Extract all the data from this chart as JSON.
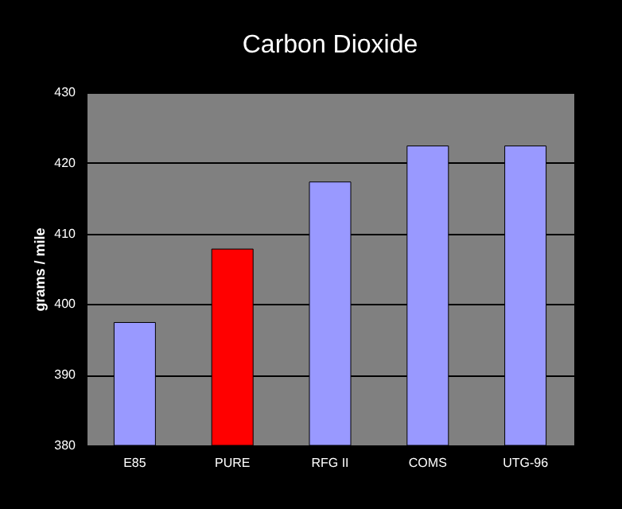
{
  "chart_data": {
    "type": "bar",
    "title": "Carbon Dioxide",
    "ylabel": "grams / mile",
    "categories": [
      "E85",
      "PURE",
      "RFG II",
      "COMS",
      "UTG-96"
    ],
    "values": [
      397.4,
      407.8,
      417.3,
      422.4,
      422.4
    ],
    "colors": [
      "#9999ff",
      "#ff0000",
      "#9999ff",
      "#9999ff",
      "#9999ff"
    ],
    "ylim": [
      380,
      430
    ],
    "yticks": [
      380,
      390,
      400,
      410,
      420,
      430
    ],
    "grid": "y"
  }
}
